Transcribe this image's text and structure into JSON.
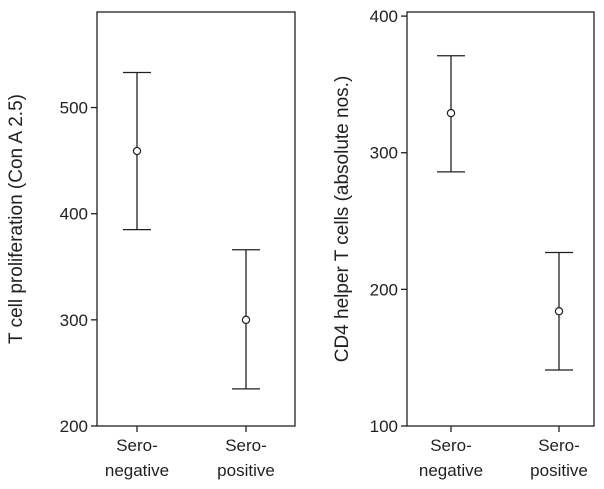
{
  "chart_data": [
    {
      "type": "errorbar",
      "ylabel": "T cell proliferation (Con A 2.5)",
      "categories": [
        [
          "Sero-",
          "negative"
        ],
        [
          "Sero-",
          "positive"
        ]
      ],
      "series": [
        {
          "values": [
            459,
            300
          ],
          "lower": [
            385,
            235
          ],
          "upper": [
            533,
            366
          ]
        }
      ],
      "ylim": [
        200,
        590
      ],
      "yticks": [
        200,
        300,
        400,
        500
      ],
      "grid": false,
      "legend": "none"
    },
    {
      "type": "errorbar",
      "ylabel": "CD4 helper T cells (absolute nos.)",
      "categories": [
        [
          "Sero-",
          "negative"
        ],
        [
          "Sero-",
          "positive"
        ]
      ],
      "series": [
        {
          "values": [
            329,
            184
          ],
          "lower": [
            286,
            141
          ],
          "upper": [
            371,
            227
          ]
        }
      ],
      "ylim": [
        100,
        403
      ],
      "yticks": [
        100,
        200,
        300,
        400
      ],
      "grid": false,
      "legend": "none"
    }
  ]
}
